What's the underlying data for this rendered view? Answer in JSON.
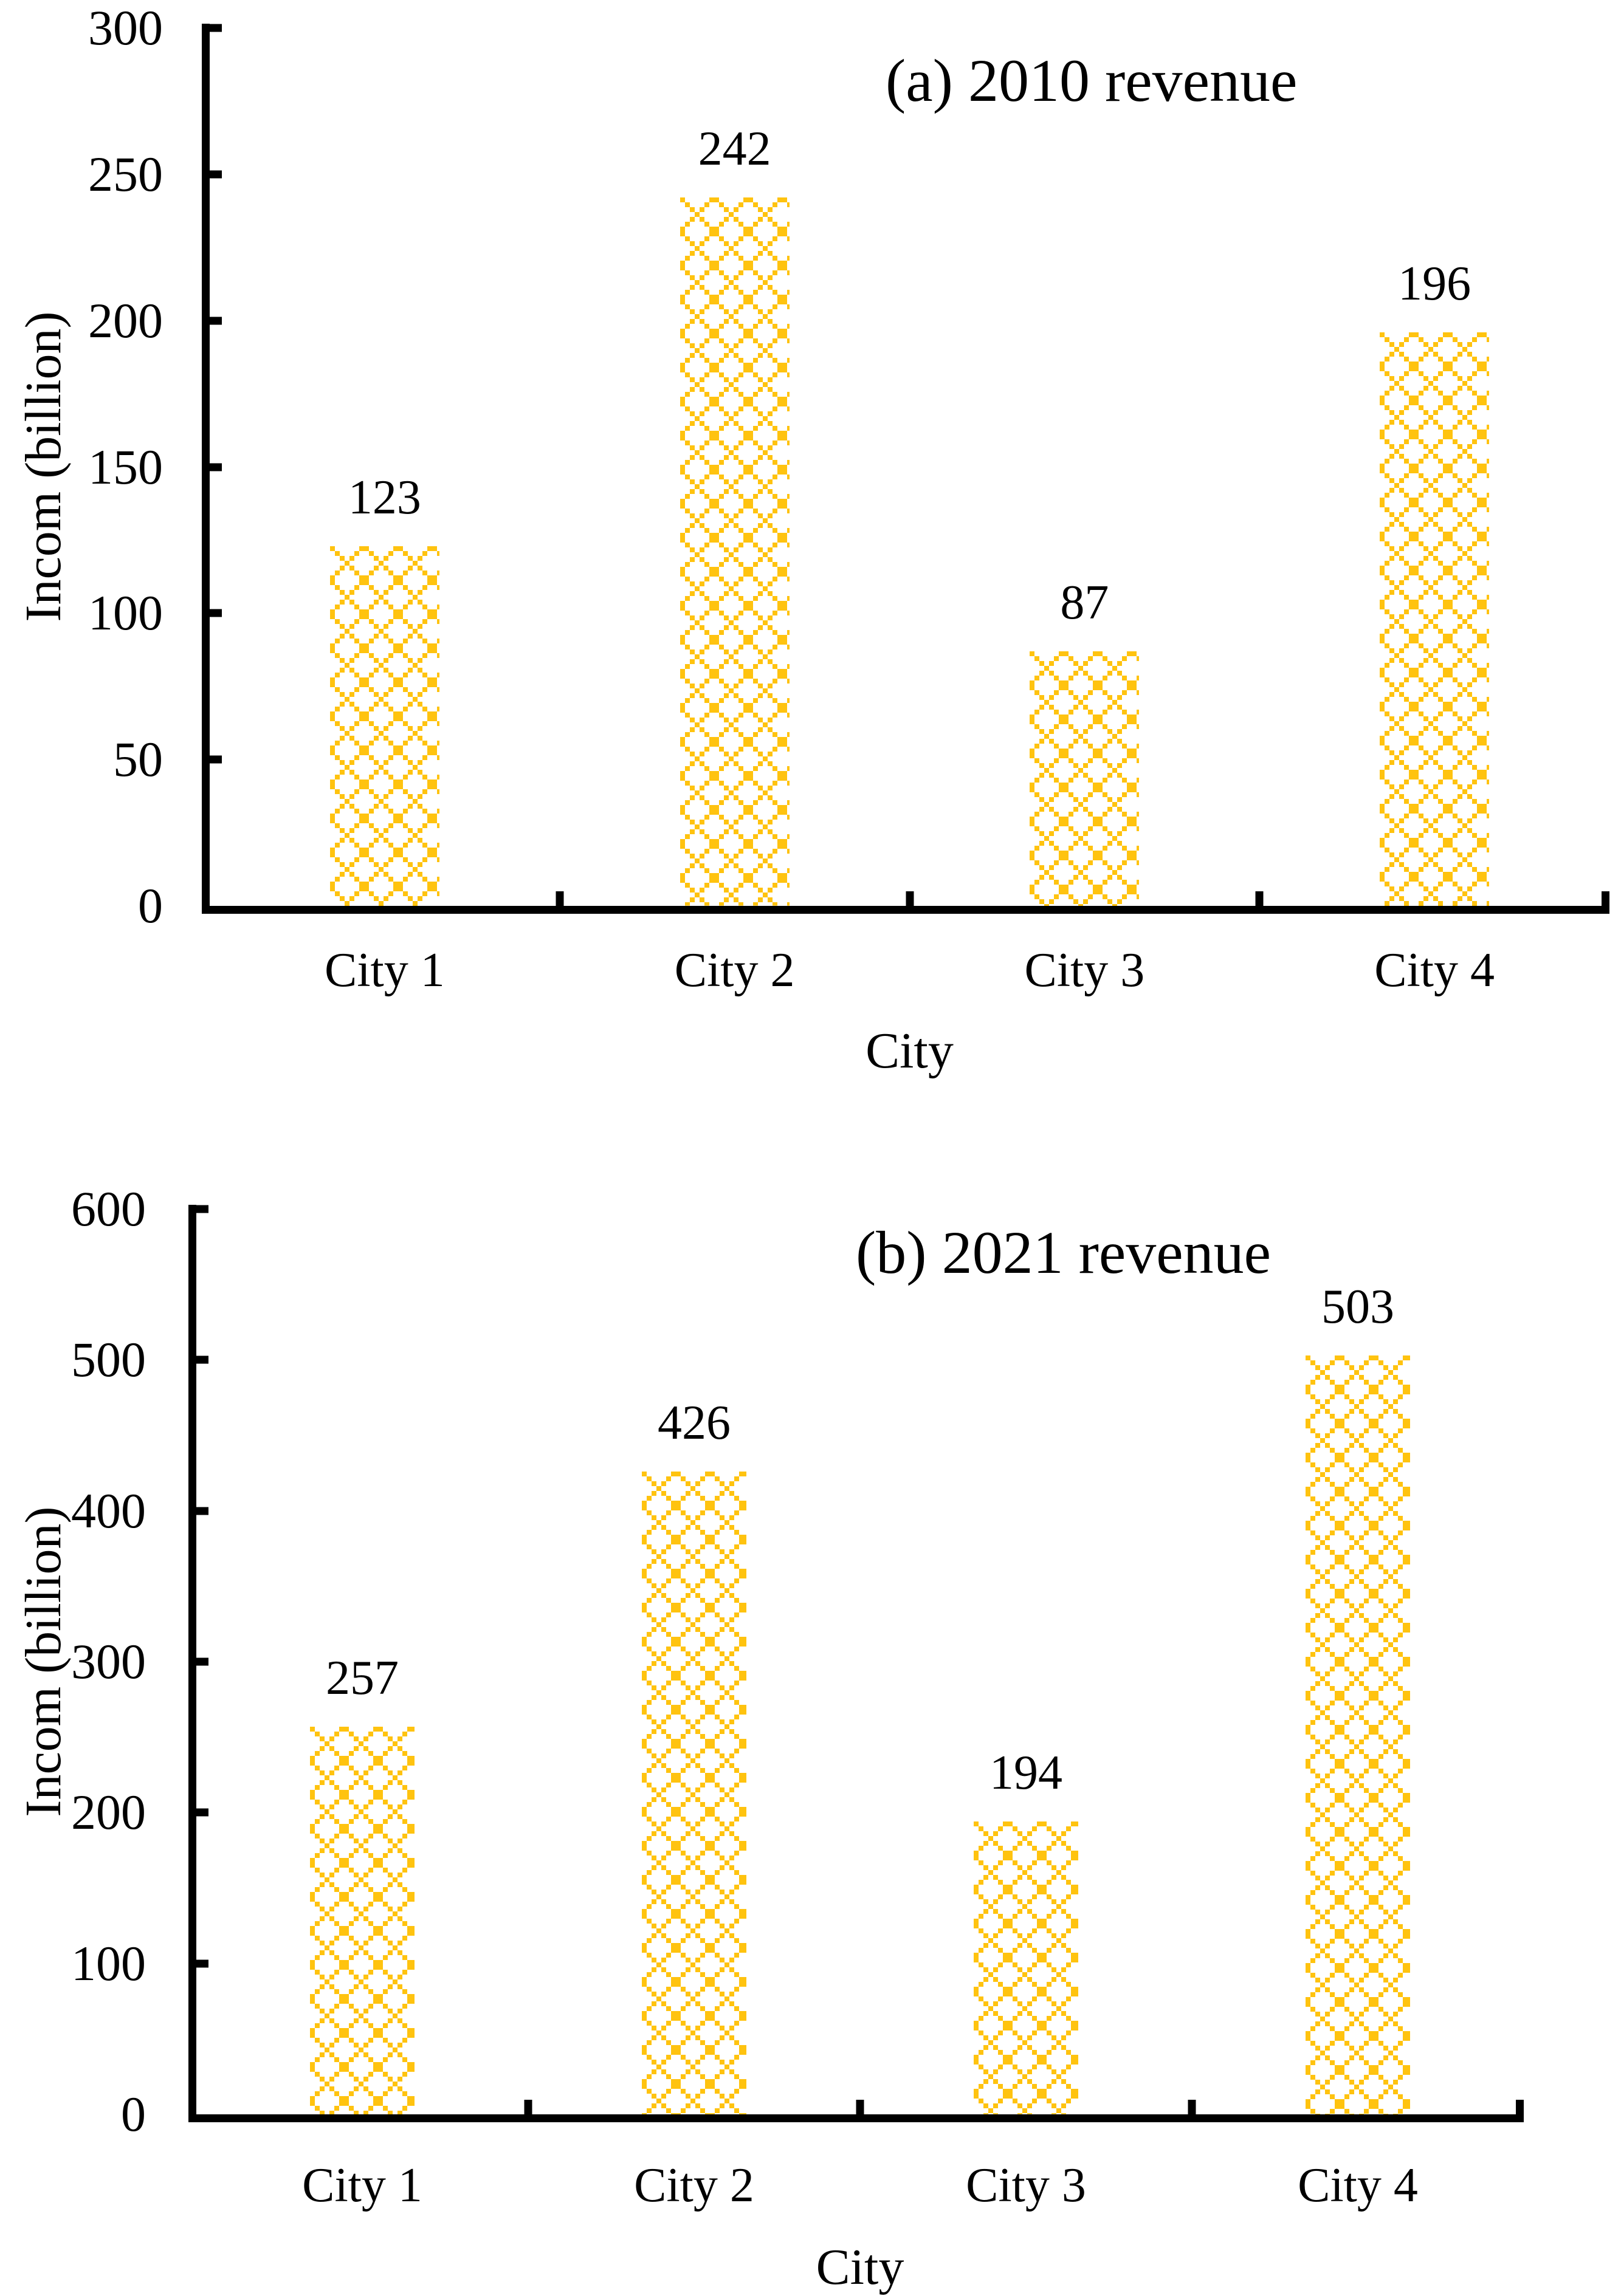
{
  "chart_data": [
    {
      "type": "bar",
      "title": "(a) 2010 revenue",
      "xlabel": "City",
      "ylabel": "Incom (billion)",
      "categories": [
        "City 1",
        "City 2",
        "City 3",
        "City 4"
      ],
      "values": [
        123,
        242,
        87,
        196
      ],
      "ylim": [
        0,
        300
      ],
      "yticks": [
        300,
        250,
        200,
        150,
        100,
        50,
        0
      ],
      "grid": false,
      "legend": false,
      "bar_pattern": "dotted-diamond-crosshatch",
      "bar_color": "#FFC30F"
    },
    {
      "type": "bar",
      "title": "(b) 2021 revenue",
      "xlabel": "City",
      "ylabel": "Incom (billion)",
      "categories": [
        "City 1",
        "City 2",
        "City 3",
        "City 4"
      ],
      "values": [
        257,
        426,
        194,
        503
      ],
      "ylim": [
        0,
        600
      ],
      "yticks": [
        600,
        500,
        400,
        300,
        200,
        100,
        0
      ],
      "grid": false,
      "legend": false,
      "bar_pattern": "dotted-diamond-crosshatch",
      "bar_color": "#FFC30F"
    }
  ]
}
